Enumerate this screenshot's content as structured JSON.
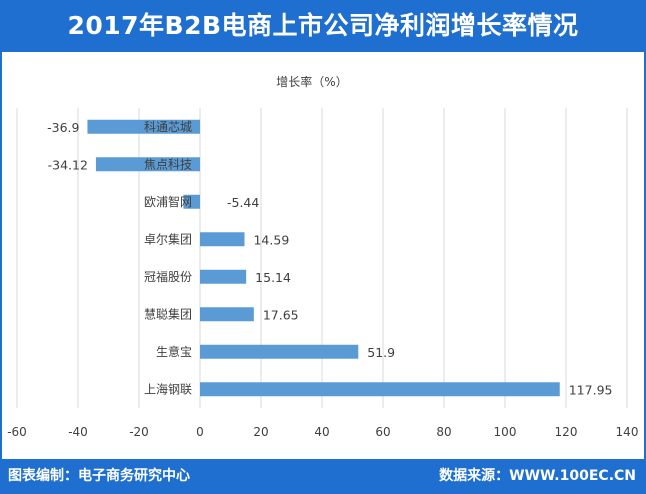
{
  "header": {
    "title": "2017年B2B电商上市公司净利润增长率情况"
  },
  "footer": {
    "left": "图表编制：电子商务研究中心",
    "right": "数据来源：WWW.100EC.CN"
  },
  "colors": {
    "accent": "#1e6fcf",
    "bar": "#5b9bd5",
    "grid": "#d9d9d9"
  },
  "chart_data": {
    "type": "bar",
    "orientation": "horizontal",
    "title": "增长率（%）",
    "categories": [
      "科通芯城",
      "焦点科技",
      "欧浦智网",
      "卓尔集团",
      "冠福股份",
      "慧聪集团",
      "生意宝",
      "上海钢联"
    ],
    "values": [
      -36.9,
      -34.12,
      -5.44,
      14.59,
      15.14,
      17.65,
      51.9,
      117.95
    ],
    "value_labels": [
      "-36.9",
      "-34.12",
      "-5.44",
      "14.59",
      "15.14",
      "17.65",
      "51.9",
      "117.95"
    ],
    "xlim": [
      -60,
      140
    ],
    "xticks": [
      -60,
      -40,
      -20,
      0,
      20,
      40,
      60,
      80,
      100,
      120,
      140
    ],
    "grid": true,
    "legend": "none"
  }
}
